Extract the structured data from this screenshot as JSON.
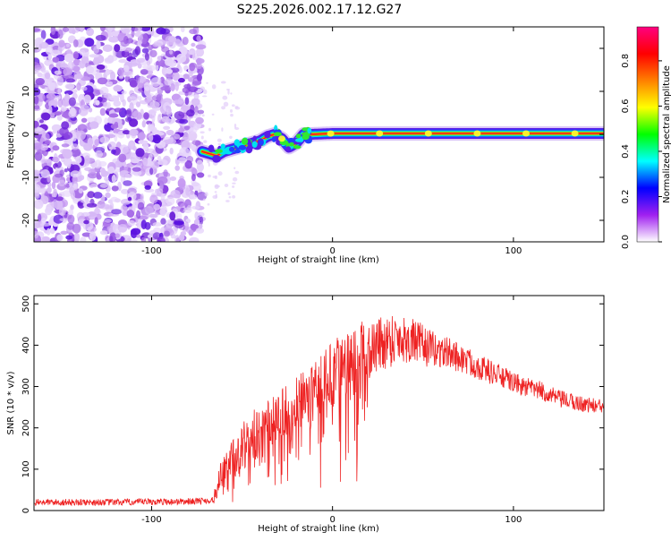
{
  "title": "S225.2026.002.17.12.G27",
  "chart_data": [
    {
      "type": "heatmap",
      "name": "spectrogram",
      "xlabel": "Height of straight line (km)",
      "ylabel": "Frequency (Hz)",
      "xlim": [
        -165,
        150
      ],
      "ylim": [
        -25,
        25
      ],
      "xticks": [
        -100,
        0,
        100
      ],
      "yticks": [
        -20,
        -10,
        0,
        10,
        20
      ],
      "noise_region_x": [
        -165,
        -72
      ],
      "signal_track": {
        "x": [
          -72,
          -68,
          -64,
          -60,
          -56,
          -52,
          -48,
          -44,
          -40,
          -36,
          -32,
          -28,
          -24,
          -20,
          -16,
          -12,
          0,
          12,
          30,
          60,
          100,
          150
        ],
        "y": [
          -4,
          -4.5,
          -5,
          -4,
          -3.5,
          -3,
          -2.5,
          -2,
          -1.5,
          -0.5,
          0,
          -1,
          -3,
          -2,
          0,
          0,
          0.2,
          0.2,
          0.2,
          0.2,
          0.2,
          0.2
        ]
      },
      "colorbar": {
        "label": "Normalized spectral amplitude",
        "ticks": [
          "0.0",
          "0.2",
          "0.4",
          "0.6",
          "0.8"
        ],
        "range": [
          0,
          0.95
        ],
        "colors": [
          "#ffffff",
          "#a020f0",
          "#0000ff",
          "#00ffff",
          "#00ff00",
          "#ffff00",
          "#ff8000",
          "#ff0000",
          "#ff0080"
        ]
      }
    },
    {
      "type": "line",
      "name": "snr",
      "xlabel": "Height of straight line (km)",
      "ylabel": "SNR (10 * v/v)",
      "xlim": [
        -165,
        150
      ],
      "ylim": [
        0,
        520
      ],
      "xticks": [
        -100,
        0,
        100
      ],
      "yticks": [
        0,
        100,
        200,
        300,
        400,
        500
      ],
      "color": "#ee2222",
      "envelope": {
        "x": [
          -165,
          -120,
          -80,
          -66,
          -62,
          -55,
          -45,
          -35,
          -25,
          -15,
          -5,
          5,
          15,
          25,
          35,
          45,
          55,
          65,
          75,
          85,
          95,
          105,
          115,
          125,
          135,
          150
        ],
        "y": [
          20,
          20,
          22,
          25,
          60,
          110,
          160,
          190,
          220,
          260,
          300,
          340,
          380,
          400,
          420,
          410,
          390,
          380,
          360,
          340,
          320,
          300,
          290,
          270,
          260,
          250
        ]
      },
      "noise_amplitude": {
        "x": [
          -165,
          -66,
          -62,
          -50,
          -30,
          0,
          30,
          60,
          100,
          150
        ],
        "y": [
          8,
          8,
          50,
          70,
          75,
          80,
          70,
          40,
          25,
          18
        ]
      }
    }
  ]
}
